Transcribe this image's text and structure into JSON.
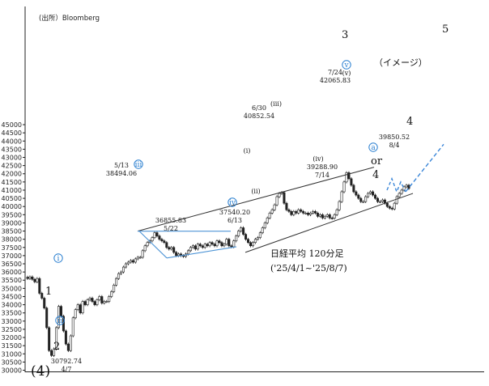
{
  "source": "(出所）Bloomberg",
  "chart_data": {
    "type": "candlestick",
    "title": "日経平均 120分足",
    "subtitle": "('25/4/1~'25/8/7)",
    "ylim": [
      30000,
      45000
    ],
    "y_ticks": [
      30000,
      30500,
      31000,
      31500,
      32000,
      32500,
      33000,
      33500,
      34000,
      34500,
      35000,
      35500,
      36000,
      36500,
      37000,
      37500,
      38000,
      38500,
      39000,
      39500,
      40000,
      40500,
      41000,
      41500,
      42000,
      42500,
      43000,
      43500,
      44000,
      44500,
      45000
    ],
    "x_tick_labels": [],
    "series_close": [
      35600,
      35700,
      35550,
      35400,
      35600,
      34700,
      34400,
      33800,
      32600,
      31200,
      30900,
      31300,
      32600,
      33900,
      33300,
      32400,
      31600,
      31200,
      32100,
      33200,
      33700,
      34000,
      33500,
      34200,
      34000,
      34300,
      34400,
      34200,
      34000,
      34300,
      34500,
      34100,
      34200,
      34200,
      34500,
      34800,
      35200,
      35600,
      35900,
      36000,
      36300,
      36500,
      36600,
      36700,
      36600,
      36800,
      36900,
      36900,
      37300,
      37600,
      37800,
      37900,
      38100,
      38400,
      38200,
      38000,
      37900,
      37800,
      37500,
      37400,
      37500,
      37200,
      37000,
      37100,
      37000,
      36950,
      37100,
      37300,
      37500,
      37600,
      37400,
      37700,
      37600,
      37500,
      37700,
      37600,
      37800,
      37700,
      37600,
      37900,
      37800,
      37600,
      37700,
      38000,
      37600,
      37540,
      37900,
      38200,
      38500,
      38700,
      38300,
      38000,
      37800,
      37600,
      37800,
      38000,
      38100,
      38400,
      38700,
      39000,
      39300,
      39600,
      39800,
      40100,
      40600,
      40800,
      40852,
      40200,
      39800,
      39700,
      39500,
      39700,
      39600,
      39800,
      39700,
      39600,
      39600,
      39500,
      39600,
      39700,
      39600,
      39400,
      39500,
      39300,
      39400,
      39500,
      39300,
      39288,
      39500,
      39800,
      40300,
      40900,
      41500,
      42065,
      41700,
      41300,
      40900,
      40700,
      40500,
      40300,
      40300,
      40600,
      40800,
      40900,
      40700,
      40500,
      40300,
      40300,
      40400,
      40200,
      40000,
      39900,
      39850,
      40200,
      40600,
      40800,
      41000,
      41200,
      41300,
      41100
    ],
    "annotations": [
      {
        "text": "30792.74",
        "text2": "4/7",
        "value": 30792.74
      },
      {
        "text": "38494.06",
        "text2": "5/13",
        "value": 38494.06
      },
      {
        "text": "36855.83",
        "text2": "5/22",
        "value": 36855.83
      },
      {
        "text": "37540.20",
        "text2": "6/13",
        "value": 37540.2
      },
      {
        "text": "40852.54",
        "text2": "6/30",
        "value": 40852.54
      },
      {
        "text": "39288.90",
        "text2": "7/14",
        "value": 39288.9
      },
      {
        "text": "42065.83",
        "text2": "7/24",
        "value": 42065.83
      },
      {
        "text": "39850.52",
        "text2": "8/4",
        "value": 39850.52
      }
    ],
    "wave_labels": {
      "w1": "1",
      "w2": "2",
      "w3": "3",
      "w4": "4",
      "w4b": "4",
      "w5": "5",
      "w4big": "(4)",
      "or": "or",
      "c_i": "i",
      "c_ii": "ii",
      "c_iii": "iii",
      "c_iv": "iv",
      "c_v": "v",
      "c_a": "a",
      "p_i": "(i)",
      "p_ii": "(ii)",
      "p_iii": "(iii)",
      "p_iv": "(iv)",
      "p_v": "(v)",
      "image": "（イメージ）"
    },
    "colors": {
      "candle": "#222222",
      "trend": "#333333",
      "blue_line": "#4f95d6",
      "projection": "#3a86d8",
      "circle": "#2a7fd0"
    },
    "grid": false
  }
}
